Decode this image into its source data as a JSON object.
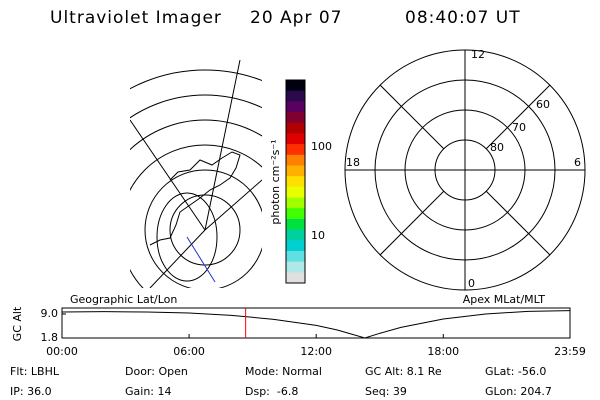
{
  "header": {
    "title": "Ultraviolet Imager",
    "date": "20 Apr 07",
    "time": "08:40:07 UT"
  },
  "colorbar": {
    "label": "photon cm⁻²s⁻¹",
    "tick_labels": [
      "100",
      "10"
    ]
  },
  "polar": {
    "labels": [
      "12",
      "6",
      "0",
      "18",
      "60",
      "70",
      "80"
    ]
  },
  "chart_data": {
    "type": "line",
    "left_label": "Geographic Lat/Lon",
    "right_label": "Apex MLat/MLT",
    "y_label": "GC Alt",
    "x": [
      0,
      2,
      4,
      6,
      8,
      10,
      12,
      13,
      14.3,
      15,
      16,
      18,
      20,
      22,
      23.98
    ],
    "values": [
      9.6,
      9.7,
      9.6,
      9.3,
      8.6,
      7.4,
      5.6,
      4.2,
      1.8,
      3.2,
      5.0,
      7.5,
      9.0,
      9.8,
      10.0
    ],
    "color": "#000000",
    "marker_x": 8.67,
    "marker_color": "#ff0000",
    "xlim": [
      0,
      23.983
    ],
    "xticks": [
      {
        "value": 0,
        "label": "00:00"
      },
      {
        "value": 6,
        "label": "06:00"
      },
      {
        "value": 12,
        "label": "12:00"
      },
      {
        "value": 18,
        "label": "18:00"
      },
      {
        "value": 23.983,
        "label": "23:59"
      }
    ],
    "ylim": [
      1.8,
      10.8
    ],
    "yticks": [
      {
        "value": 9.0,
        "label": "9.0"
      },
      {
        "value": 1.8,
        "label": "1.8"
      }
    ]
  },
  "footer": {
    "rows": [
      [
        "Flt: LBHL",
        "Door: Open",
        "Mode: Normal",
        "GC Alt: 8.1 Re",
        "GLat: -56.0"
      ],
      [
        "IP: 36.0",
        "Gain: 14",
        "Dsp:  -6.8",
        "Seq: 39",
        "GLon: 204.7"
      ]
    ]
  }
}
